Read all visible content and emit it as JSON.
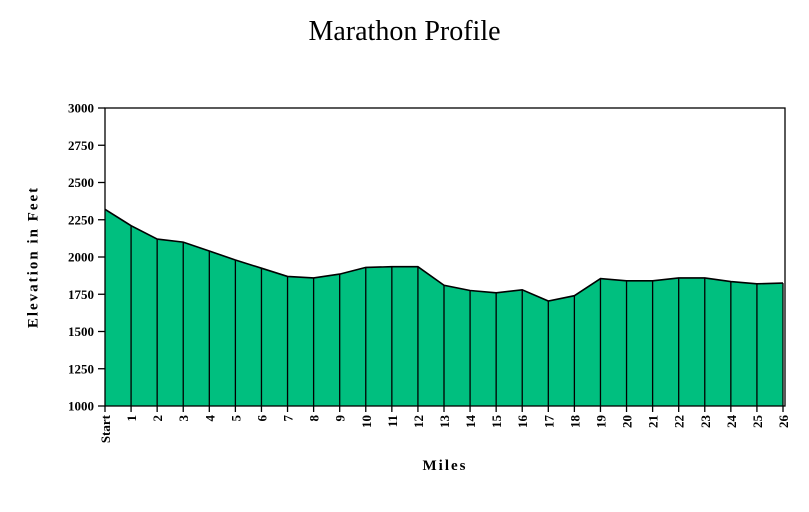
{
  "chart_data": {
    "type": "area",
    "title": "Marathon Profile",
    "xlabel": "Miles",
    "ylabel": "Elevation in Feet",
    "categories": [
      "Start",
      "1",
      "2",
      "3",
      "4",
      "5",
      "6",
      "7",
      "8",
      "9",
      "10",
      "11",
      "12",
      "13",
      "14",
      "15",
      "16",
      "17",
      "18",
      "19",
      "20",
      "21",
      "22",
      "23",
      "24",
      "25",
      "26"
    ],
    "values": [
      2320,
      2210,
      2120,
      2100,
      2040,
      1980,
      1925,
      1870,
      1860,
      1885,
      1930,
      1935,
      1935,
      1810,
      1775,
      1760,
      1780,
      1705,
      1740,
      1855,
      1840,
      1840,
      1860,
      1860,
      1835,
      1820,
      1825
    ],
    "ylim": [
      1000,
      3000
    ],
    "yticks": [
      1000,
      1250,
      1500,
      1750,
      2000,
      2250,
      2500,
      2750,
      3000
    ],
    "grid": false,
    "legend": "none",
    "drop_lines": true,
    "fill_color": "#00BF7F",
    "line_color": "#000000",
    "background_color": "#FFFFFF",
    "text_color": "#000000"
  }
}
